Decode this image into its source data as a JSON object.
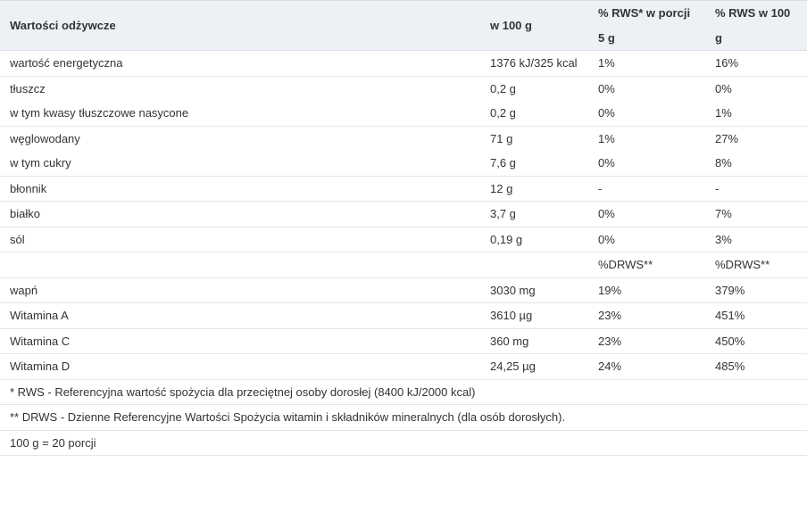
{
  "header": {
    "col_name": "Wartości odżywcze",
    "col_100g": "w 100 g",
    "col_rws_portion": "% RWS* w porcji 5 g",
    "col_rws_100g": "% RWS w 100 g"
  },
  "rows": [
    {
      "name": "wartość energetyczna",
      "per100": "1376 kJ/325 kcal",
      "portion": "1%",
      "pct100": "16%"
    },
    {
      "name": "tłuszcz",
      "per100": "0,2 g",
      "portion": "0%",
      "pct100": "0%"
    },
    {
      "name": "w tym kwasy tłuszczowe nasycone",
      "per100": "0,2 g",
      "portion": "0%",
      "pct100": "1%"
    },
    {
      "name": "węglowodany",
      "per100": "71 g",
      "portion": "1%",
      "pct100": "27%"
    },
    {
      "name": "w tym cukry",
      "per100": "7,6 g",
      "portion": "0%",
      "pct100": "8%"
    },
    {
      "name": "błonnik",
      "per100": "12 g",
      "portion": "-",
      "pct100": "-"
    },
    {
      "name": "białko",
      "per100": "3,7 g",
      "portion": "0%",
      "pct100": "7%"
    },
    {
      "name": "sól",
      "per100": "0,19 g",
      "portion": "0%",
      "pct100": "3%"
    },
    {
      "name": "",
      "per100": "",
      "portion": "%DRWS**",
      "pct100": "%DRWS**"
    },
    {
      "name": "wapń",
      "per100": "3030 mg",
      "portion": "19%",
      "pct100": "379%"
    },
    {
      "name": "Witamina A",
      "per100": "3610 µg",
      "portion": "23%",
      "pct100": "451%"
    },
    {
      "name": "Witamina C",
      "per100": "360 mg",
      "portion": "23%",
      "pct100": "450%"
    },
    {
      "name": "Witamina D",
      "per100": "24,25 µg",
      "portion": "24%",
      "pct100": "485%"
    }
  ],
  "notes": {
    "rws": "* RWS - Referencyjna wartość spożycia dla przeciętnej osoby dorosłej (8400 kJ/2000 kcal)",
    "drws": "** DRWS - Dzienne Referencyjne Wartości Spożycia witamin i składników mineralnych (dla osób dorosłych).",
    "portion": "100 g = 20 porcji"
  }
}
